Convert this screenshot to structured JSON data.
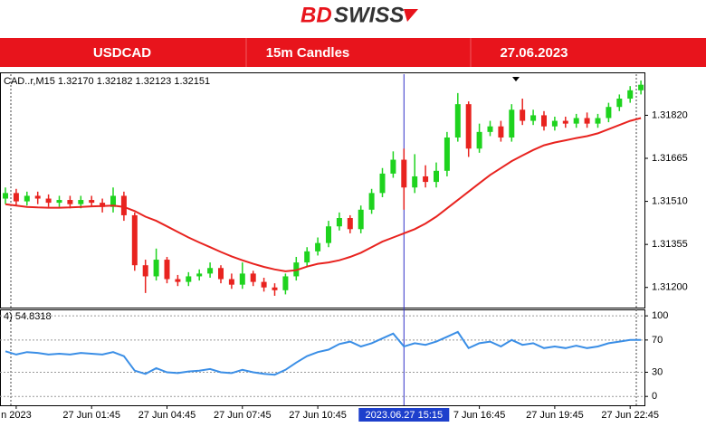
{
  "brand": {
    "prefix": "BD",
    "suffix": "SWISS"
  },
  "banner": {
    "symbol": "USDCAD",
    "timeframe": "15m Candles",
    "date": "27.06.2023"
  },
  "chart_data": [
    {
      "type": "candlestick",
      "info": "CAD..r,M15  1.32170 1.32182 1.32123 1.32151",
      "categories": [
        null,
        "n 2023",
        null,
        null,
        null,
        null,
        null,
        null,
        "27 Jun 01:45",
        null,
        null,
        null,
        null,
        null,
        null,
        "27 Jun 04:45",
        null,
        null,
        null,
        null,
        null,
        null,
        "27 Jun 07:45",
        null,
        null,
        null,
        null,
        null,
        null,
        "27 Jun 10:45",
        null,
        null,
        null,
        null,
        null,
        null,
        null,
        "2023.06.27 15:15",
        null,
        null,
        null,
        null,
        null,
        null,
        "7 Jun 16:45",
        null,
        null,
        null,
        null,
        null,
        null,
        "27 Jun 19:45",
        null,
        null,
        null,
        null,
        null,
        null,
        "27 Jun 22:45",
        null
      ],
      "crosshair_index": 37,
      "open": [
        1.3152,
        1.3154,
        1.3151,
        1.3153,
        1.3152,
        1.31505,
        1.31515,
        1.315,
        1.31515,
        1.31505,
        1.3149,
        1.3153,
        1.3146,
        1.3128,
        1.3124,
        1.313,
        1.3123,
        1.3122,
        1.3124,
        1.3125,
        1.3127,
        1.3123,
        1.3121,
        1.3125,
        1.3122,
        1.312,
        1.3119,
        1.3124,
        1.3129,
        1.3133,
        1.3136,
        1.3142,
        1.3145,
        1.3141,
        1.3148,
        1.3154,
        1.3161,
        1.3166,
        1.3156,
        1.316,
        1.3158,
        1.3162,
        1.3174,
        1.3186,
        1.317,
        1.3176,
        1.3178,
        1.3174,
        1.3184,
        1.318,
        1.3182,
        1.3178,
        1.318,
        1.3179,
        1.3181,
        1.3179,
        1.3181,
        1.3185,
        1.3188,
        1.3191
      ],
      "high": [
        1.3156,
        1.31555,
        1.31545,
        1.31545,
        1.31535,
        1.3153,
        1.3153,
        1.3153,
        1.3153,
        1.3152,
        1.3156,
        1.31545,
        1.3147,
        1.313,
        1.3134,
        1.3131,
        1.31245,
        1.31255,
        1.31265,
        1.3129,
        1.3128,
        1.3125,
        1.3129,
        1.3126,
        1.31235,
        1.31215,
        1.3125,
        1.3131,
        1.31345,
        1.3138,
        1.3144,
        1.3147,
        1.3146,
        1.31495,
        1.31555,
        1.3163,
        1.3169,
        1.317,
        1.3168,
        1.3164,
        1.3165,
        1.3176,
        1.319,
        1.3187,
        1.3179,
        1.318,
        1.318,
        1.3186,
        1.3188,
        1.3184,
        1.31835,
        1.31815,
        1.31815,
        1.31825,
        1.3183,
        1.31825,
        1.31865,
        1.31895,
        1.31925,
        1.31945
      ],
      "low": [
        1.315,
        1.31495,
        1.31495,
        1.315,
        1.3149,
        1.3149,
        1.31485,
        1.31485,
        1.3149,
        1.3147,
        1.3147,
        1.3144,
        1.3126,
        1.3118,
        1.31225,
        1.31215,
        1.31205,
        1.31205,
        1.31225,
        1.31235,
        1.31215,
        1.31195,
        1.31195,
        1.31205,
        1.31185,
        1.3117,
        1.31175,
        1.31225,
        1.31275,
        1.31315,
        1.31345,
        1.31405,
        1.31395,
        1.31395,
        1.31465,
        1.31525,
        1.31595,
        1.3148,
        1.3154,
        1.3156,
        1.3156,
        1.316,
        1.31725,
        1.3167,
        1.31685,
        1.31745,
        1.31725,
        1.31725,
        1.31785,
        1.31785,
        1.31765,
        1.31765,
        1.31775,
        1.31775,
        1.31775,
        1.31775,
        1.31795,
        1.31835,
        1.31865,
        1.31895
      ],
      "close": [
        1.3154,
        1.3151,
        1.3153,
        1.3152,
        1.31505,
        1.31515,
        1.315,
        1.31515,
        1.31505,
        1.3149,
        1.3153,
        1.3146,
        1.3128,
        1.3124,
        1.313,
        1.3123,
        1.3122,
        1.3124,
        1.3125,
        1.3127,
        1.3123,
        1.3121,
        1.3125,
        1.3122,
        1.312,
        1.3119,
        1.3124,
        1.3129,
        1.3133,
        1.3136,
        1.3142,
        1.3145,
        1.3141,
        1.3148,
        1.3154,
        1.3161,
        1.3166,
        1.3156,
        1.316,
        1.3158,
        1.3162,
        1.3174,
        1.3186,
        1.317,
        1.3176,
        1.3178,
        1.3174,
        1.3184,
        1.318,
        1.3182,
        1.3178,
        1.318,
        1.3179,
        1.3181,
        1.3179,
        1.3181,
        1.3185,
        1.3188,
        1.3191,
        1.3193
      ],
      "up_color": "#1ed31e",
      "down_color": "#e8231f",
      "ma": {
        "color": "#e8231f",
        "values": [
          1.315,
          1.31495,
          1.3149,
          1.31488,
          1.31487,
          1.31487,
          1.31488,
          1.3149,
          1.31492,
          1.31493,
          1.31495,
          1.3149,
          1.31475,
          1.31455,
          1.3144,
          1.3142,
          1.314,
          1.3138,
          1.31362,
          1.31345,
          1.31328,
          1.31312,
          1.31298,
          1.31285,
          1.31274,
          1.31265,
          1.31258,
          1.31262,
          1.31275,
          1.31285,
          1.3129,
          1.31298,
          1.3131,
          1.31325,
          1.31345,
          1.31365,
          1.3138,
          1.31395,
          1.3141,
          1.3143,
          1.31455,
          1.31485,
          1.31515,
          1.31545,
          1.31575,
          1.31605,
          1.3163,
          1.31655,
          1.31675,
          1.31695,
          1.31712,
          1.31722,
          1.3173,
          1.31738,
          1.31745,
          1.31755,
          1.3177,
          1.31785,
          1.318,
          1.3181
        ]
      },
      "ylim": [
        1.31134,
        1.31968
      ],
      "yticks": [
        {
          "value": 1.3182,
          "label": "1.31820"
        },
        1.31665,
        {
          "value": 1.3151,
          "label": "1.31510"
        },
        1.31355,
        {
          "value": 1.312,
          "label": "1.31200"
        }
      ]
    },
    {
      "type": "line",
      "info": "4) 54.8318",
      "color": "#3a8ee6",
      "values": [
        56,
        52,
        55,
        54,
        52,
        53,
        52,
        54,
        53,
        52,
        55,
        50,
        32,
        28,
        35,
        30,
        29,
        31,
        32,
        34,
        30,
        29,
        33,
        30,
        28,
        27,
        33,
        42,
        50,
        55,
        58,
        65,
        68,
        62,
        66,
        72,
        78,
        62,
        66,
        64,
        68,
        74,
        80,
        60,
        66,
        68,
        62,
        70,
        64,
        66,
        60,
        62,
        60,
        63,
        60,
        62,
        66,
        68,
        70,
        70
      ],
      "ylim": [
        -11,
        108
      ],
      "yticks": [
        100,
        70,
        30,
        0
      ],
      "grid": "dotted"
    }
  ]
}
